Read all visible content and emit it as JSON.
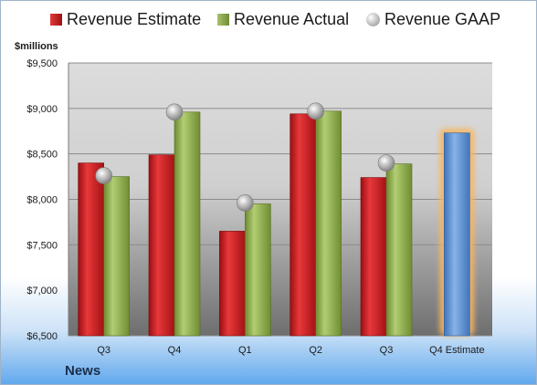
{
  "chart_data": {
    "type": "bar",
    "title": "",
    "ylabel": "$millions",
    "xlabel": "",
    "categories": [
      "Q3",
      "Q4",
      "Q1",
      "Q2",
      "Q3",
      "Q4 Estimate"
    ],
    "ylim": [
      6500,
      9500
    ],
    "yticks": [
      "$6,500",
      "$7,000",
      "$7,500",
      "$8,000",
      "$8,500",
      "$9,000",
      "$9,500"
    ],
    "ytick_values": [
      6500,
      7000,
      7500,
      8000,
      8500,
      9000,
      9500
    ],
    "grid": true,
    "legend_position": "top",
    "series": [
      {
        "name": "Revenue Estimate",
        "type": "bar",
        "color": "#c0191c",
        "values": [
          8400,
          8490,
          7650,
          8940,
          8240,
          null
        ]
      },
      {
        "name": "Revenue Actual",
        "type": "bar",
        "color": "#8aa84a",
        "values": [
          8250,
          8960,
          7950,
          8970,
          8390,
          null
        ]
      },
      {
        "name": "Revenue GAAP",
        "type": "marker",
        "color": "#a6a6a6",
        "values": [
          8260,
          8960,
          7960,
          8970,
          8400,
          null
        ]
      },
      {
        "name": "",
        "type": "bar",
        "color": "#5b8fd0",
        "highlight": "#f7b560",
        "values": [
          null,
          null,
          null,
          null,
          null,
          8730
        ]
      }
    ]
  },
  "footer": {
    "label": "News"
  }
}
